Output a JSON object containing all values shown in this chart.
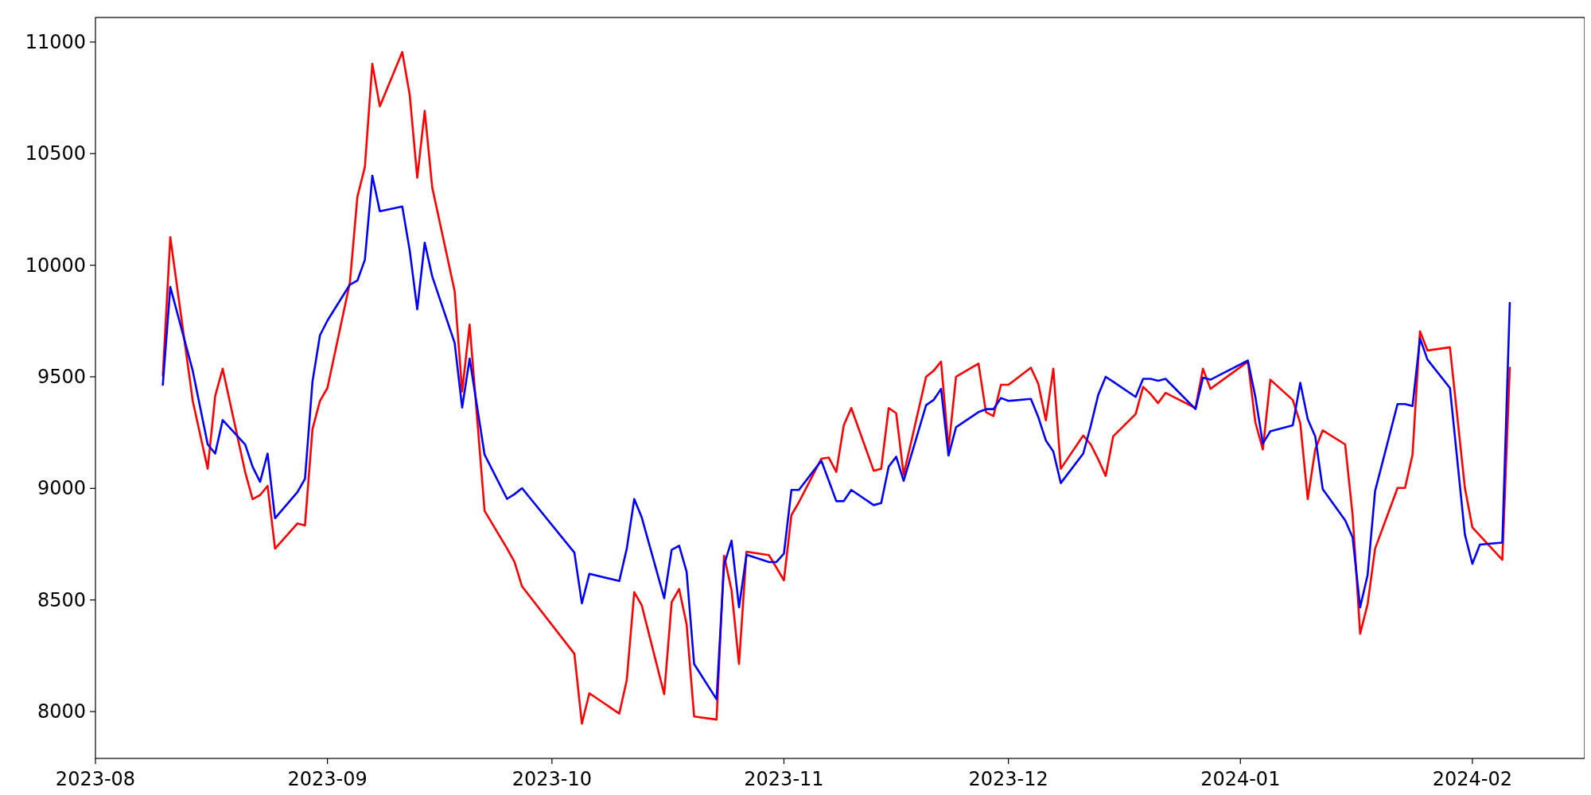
{
  "chart_data": {
    "type": "line",
    "x": [
      "2023-08-10",
      "2023-08-11",
      "2023-08-14",
      "2023-08-16",
      "2023-08-17",
      "2023-08-18",
      "2023-08-21",
      "2023-08-22",
      "2023-08-23",
      "2023-08-24",
      "2023-08-25",
      "2023-08-28",
      "2023-08-29",
      "2023-08-30",
      "2023-08-31",
      "2023-09-01",
      "2023-09-04",
      "2023-09-05",
      "2023-09-06",
      "2023-09-07",
      "2023-09-08",
      "2023-09-11",
      "2023-09-12",
      "2023-09-13",
      "2023-09-14",
      "2023-09-15",
      "2023-09-18",
      "2023-09-19",
      "2023-09-20",
      "2023-09-22",
      "2023-09-25",
      "2023-09-26",
      "2023-09-27",
      "2023-10-04",
      "2023-10-05",
      "2023-10-06",
      "2023-10-10",
      "2023-10-11",
      "2023-10-12",
      "2023-10-13",
      "2023-10-16",
      "2023-10-17",
      "2023-10-18",
      "2023-10-19",
      "2023-10-20",
      "2023-10-23",
      "2023-10-24",
      "2023-10-25",
      "2023-10-26",
      "2023-10-27",
      "2023-10-30",
      "2023-10-31",
      "2023-11-01",
      "2023-11-02",
      "2023-11-03",
      "2023-11-06",
      "2023-11-07",
      "2023-11-08",
      "2023-11-09",
      "2023-11-10",
      "2023-11-13",
      "2023-11-14",
      "2023-11-15",
      "2023-11-16",
      "2023-11-17",
      "2023-11-20",
      "2023-11-21",
      "2023-11-22",
      "2023-11-23",
      "2023-11-24",
      "2023-11-27",
      "2023-11-28",
      "2023-11-29",
      "2023-11-30",
      "2023-12-01",
      "2023-12-04",
      "2023-12-05",
      "2023-12-06",
      "2023-12-07",
      "2023-12-08",
      "2023-12-11",
      "2023-12-12",
      "2023-12-13",
      "2023-12-14",
      "2023-12-15",
      "2023-12-18",
      "2023-12-19",
      "2023-12-20",
      "2023-12-21",
      "2023-12-22",
      "2023-12-26",
      "2023-12-27",
      "2023-12-28",
      "2024-01-02",
      "2024-01-03",
      "2024-01-04",
      "2024-01-05",
      "2024-01-08",
      "2024-01-09",
      "2024-01-10",
      "2024-01-11",
      "2024-01-12",
      "2024-01-15",
      "2024-01-16",
      "2024-01-17",
      "2024-01-18",
      "2024-01-19",
      "2024-01-22",
      "2024-01-23",
      "2024-01-24",
      "2024-01-25",
      "2024-01-26",
      "2024-01-29",
      "2024-01-31",
      "2024-02-01",
      "2024-02-02",
      "2024-02-05",
      "2024-02-06"
    ],
    "series": [
      {
        "color": "#ff0000",
        "values": [
          9505,
          10126,
          9392,
          9088,
          9414,
          9536,
          9074,
          8952,
          8970,
          9011,
          8730,
          8843,
          8834,
          9265,
          9392,
          9450,
          9922,
          10306,
          10440,
          10902,
          10712,
          10955,
          10762,
          10392,
          10691,
          10349,
          9884,
          9434,
          9734,
          8899,
          8731,
          8670,
          8561,
          8259,
          7946,
          8082,
          7991,
          8141,
          8535,
          8476,
          8078,
          8490,
          8549,
          8390,
          7978,
          7964,
          8698,
          8544,
          8213,
          8716,
          8701,
          8645,
          8588,
          8880,
          8938,
          9133,
          9138,
          9074,
          9283,
          9360,
          9079,
          9088,
          9360,
          9337,
          9061,
          9500,
          9527,
          9568,
          9179,
          9500,
          9559,
          9342,
          9324,
          9464,
          9464,
          9541,
          9468,
          9305,
          9536,
          9088,
          9237,
          9197,
          9130,
          9056,
          9233,
          9333,
          9455,
          9423,
          9382,
          9428,
          9360,
          9536,
          9446,
          9568,
          9296,
          9174,
          9487,
          9396,
          9292,
          8952,
          9174,
          9260,
          9197,
          8880,
          8349,
          8481,
          8730,
          9002,
          9002,
          9151,
          9704,
          9618,
          9632,
          9002,
          8825,
          8789,
          8680,
          9541
        ]
      },
      {
        "color": "#0000ff",
        "values": [
          9464,
          9903,
          9527,
          9197,
          9156,
          9306,
          9197,
          9097,
          9029,
          9156,
          8866,
          8984,
          9043,
          9478,
          9686,
          9752,
          9913,
          9931,
          10024,
          10401,
          10242,
          10263,
          10065,
          9802,
          10101,
          9950,
          9652,
          9362,
          9582,
          9151,
          8953,
          8974,
          9001,
          8712,
          8485,
          8617,
          8585,
          8730,
          8952,
          8870,
          8508,
          8725,
          8743,
          8626,
          8213,
          8055,
          8657,
          8766,
          8467,
          8703,
          8670,
          8670,
          8708,
          8993,
          8993,
          9124,
          9034,
          8943,
          8943,
          8993,
          8925,
          8934,
          9097,
          9142,
          9034,
          9373,
          9396,
          9446,
          9147,
          9274,
          9342,
          9355,
          9355,
          9405,
          9392,
          9401,
          9319,
          9215,
          9165,
          9024,
          9156,
          9280,
          9419,
          9500,
          9478,
          9410,
          9491,
          9491,
          9482,
          9491,
          9355,
          9496,
          9487,
          9573,
          9410,
          9201,
          9256,
          9283,
          9473,
          9310,
          9233,
          8997,
          8857,
          8780,
          8467,
          8612,
          8988,
          9378,
          9378,
          9369,
          9672,
          9577,
          9450,
          8793,
          8662,
          8748,
          8757,
          9831
        ]
      }
    ],
    "xlim": [
      "2023-08-01",
      "2024-02-16"
    ],
    "xticks": [
      {
        "value": "2023-08-01",
        "label": "2023-08"
      },
      {
        "value": "2023-09-01",
        "label": "2023-09"
      },
      {
        "value": "2023-10-01",
        "label": "2023-10"
      },
      {
        "value": "2023-11-01",
        "label": "2023-11"
      },
      {
        "value": "2023-12-01",
        "label": "2023-12"
      },
      {
        "value": "2024-01-01",
        "label": "2024-01"
      },
      {
        "value": "2024-02-01",
        "label": "2024-02"
      }
    ],
    "ylim": [
      7790,
      11110
    ],
    "yticks": [
      8000,
      8500,
      9000,
      9500,
      10000,
      10500,
      11000
    ]
  }
}
